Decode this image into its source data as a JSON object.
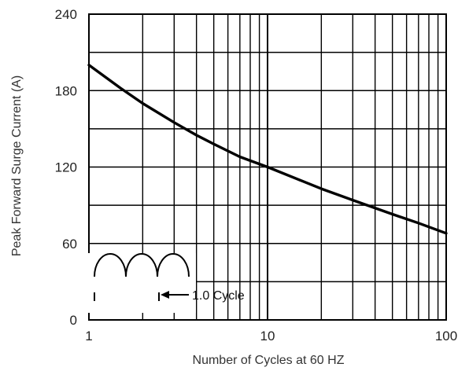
{
  "chart_data": {
    "type": "line",
    "title": "",
    "xlabel": "Number of Cycles at 60 HZ",
    "ylabel": "Peak Forward Surge Current (A)",
    "x_scale": "log",
    "xlim": [
      1,
      100
    ],
    "ylim": [
      0,
      240
    ],
    "x_ticks": [
      1,
      10,
      100
    ],
    "y_ticks": [
      0,
      60,
      120,
      180,
      240
    ],
    "grid": true,
    "series": [
      {
        "name": "",
        "color": "#000000",
        "x": [
          1,
          1.5,
          2,
          3,
          4,
          5,
          7,
          10,
          15,
          20,
          30,
          50,
          70,
          100
        ],
        "y": [
          200,
          182,
          170,
          155,
          145,
          138,
          128,
          120,
          110,
          103,
          94,
          83,
          76,
          68
        ]
      }
    ],
    "inset": {
      "label": "1.0 Cycle",
      "icon": "half-wave-rectified-sine-icon"
    }
  }
}
